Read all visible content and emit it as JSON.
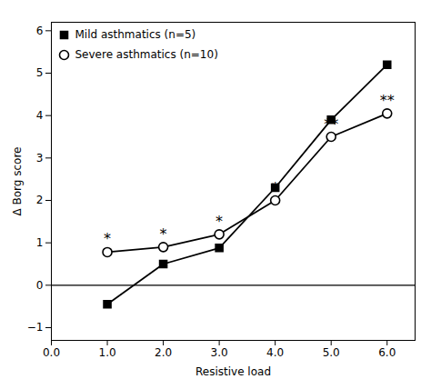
{
  "chart_data": {
    "type": "line",
    "x": [
      1,
      2,
      3,
      4,
      5,
      6
    ],
    "series": [
      {
        "name": "Mild asthmatics (n=5)",
        "color": "#000000",
        "marker": "square",
        "values": [
          -0.45,
          0.5,
          0.88,
          2.3,
          3.9,
          5.2
        ]
      },
      {
        "name": "Severe asthmatics (n=10)",
        "color": "#000000",
        "marker": "open_circle",
        "values": [
          0.78,
          0.9,
          1.2,
          2.0,
          3.5,
          4.05
        ]
      }
    ],
    "annotations": [
      {
        "x": 1,
        "y": 0.78,
        "text": "*"
      },
      {
        "x": 2,
        "y": 0.9,
        "text": "*"
      },
      {
        "x": 3,
        "y": 1.2,
        "text": "*"
      },
      {
        "x": 4,
        "y": 2.0,
        "text": "*"
      },
      {
        "x": 5,
        "y": 3.5,
        "text": "**"
      },
      {
        "x": 6,
        "y": 4.05,
        "text": "**"
      }
    ],
    "hlines": [
      0
    ],
    "xlabel": "Resistive load",
    "ylabel": "Δ Borg score",
    "xlim": [
      0,
      6.5
    ],
    "ylim": [
      -1.3,
      6.2
    ],
    "xticks": [
      0,
      1,
      2,
      3,
      4,
      5,
      6
    ],
    "yticks": [
      -1,
      0,
      1,
      2,
      3,
      4,
      5,
      6
    ],
    "legend": "upper left",
    "grid": false
  }
}
